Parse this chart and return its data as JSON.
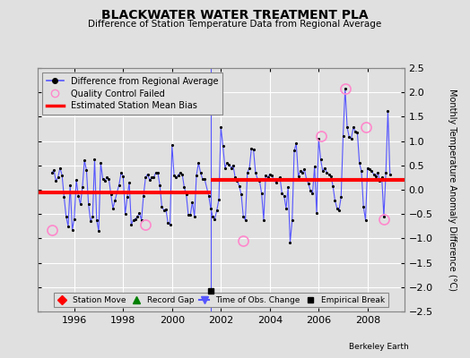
{
  "title": "BLACKWATER WATER TREATMENT PLA",
  "subtitle": "Difference of Station Temperature Data from Regional Average",
  "ylabel": "Monthly Temperature Anomaly Difference (°C)",
  "xlabel_ticks": [
    1996,
    1998,
    2000,
    2002,
    2004,
    2006,
    2008
  ],
  "yticks": [
    -2.5,
    -2,
    -1.5,
    -1,
    -0.5,
    0,
    0.5,
    1,
    1.5,
    2,
    2.5
  ],
  "xlim": [
    1994.5,
    2009.5
  ],
  "ylim": [
    -2.5,
    2.5
  ],
  "bg_color": "#e0e0e0",
  "plot_bg_color": "#e0e0e0",
  "grid_color": "#ffffff",
  "bias_line_1": {
    "x": [
      1994.5,
      2001.58
    ],
    "y": [
      -0.05,
      -0.05
    ]
  },
  "bias_line_2": {
    "x": [
      2001.58,
      2009.5
    ],
    "y": [
      0.2,
      0.2
    ]
  },
  "empirical_break_x": 2001.58,
  "empirical_break_marker_x": 2001.58,
  "empirical_break_marker_y": -2.08,
  "monthly_data": [
    [
      1995.083,
      0.35
    ],
    [
      1995.167,
      0.4
    ],
    [
      1995.25,
      0.18
    ],
    [
      1995.333,
      0.25
    ],
    [
      1995.417,
      0.45
    ],
    [
      1995.5,
      0.3
    ],
    [
      1995.583,
      -0.15
    ],
    [
      1995.667,
      -0.55
    ],
    [
      1995.75,
      -0.75
    ],
    [
      1995.833,
      0.1
    ],
    [
      1995.917,
      -0.82
    ],
    [
      1996.0,
      -0.6
    ],
    [
      1996.083,
      0.2
    ],
    [
      1996.167,
      -0.12
    ],
    [
      1996.25,
      -0.3
    ],
    [
      1996.333,
      0.05
    ],
    [
      1996.417,
      0.6
    ],
    [
      1996.5,
      0.4
    ],
    [
      1996.583,
      -0.3
    ],
    [
      1996.667,
      -0.65
    ],
    [
      1996.75,
      -0.55
    ],
    [
      1996.833,
      0.62
    ],
    [
      1996.917,
      -0.62
    ],
    [
      1997.0,
      -0.85
    ],
    [
      1997.083,
      0.55
    ],
    [
      1997.167,
      0.22
    ],
    [
      1997.25,
      0.18
    ],
    [
      1997.333,
      0.25
    ],
    [
      1997.417,
      0.22
    ],
    [
      1997.5,
      -0.1
    ],
    [
      1997.583,
      -0.38
    ],
    [
      1997.667,
      -0.22
    ],
    [
      1997.75,
      -0.05
    ],
    [
      1997.833,
      0.1
    ],
    [
      1997.917,
      0.35
    ],
    [
      1998.0,
      0.28
    ],
    [
      1998.083,
      -0.5
    ],
    [
      1998.167,
      -0.15
    ],
    [
      1998.25,
      0.15
    ],
    [
      1998.333,
      -0.72
    ],
    [
      1998.417,
      -0.62
    ],
    [
      1998.5,
      -0.6
    ],
    [
      1998.583,
      -0.55
    ],
    [
      1998.667,
      -0.48
    ],
    [
      1998.75,
      -0.62
    ],
    [
      1998.833,
      -0.12
    ],
    [
      1998.917,
      0.25
    ],
    [
      1999.0,
      0.32
    ],
    [
      1999.083,
      0.2
    ],
    [
      1999.167,
      0.25
    ],
    [
      1999.25,
      0.25
    ],
    [
      1999.333,
      0.35
    ],
    [
      1999.417,
      0.35
    ],
    [
      1999.5,
      0.1
    ],
    [
      1999.583,
      -0.35
    ],
    [
      1999.667,
      -0.42
    ],
    [
      1999.75,
      -0.4
    ],
    [
      1999.833,
      -0.68
    ],
    [
      1999.917,
      -0.72
    ],
    [
      2000.0,
      0.92
    ],
    [
      2000.083,
      0.3
    ],
    [
      2000.167,
      0.25
    ],
    [
      2000.25,
      0.3
    ],
    [
      2000.333,
      0.35
    ],
    [
      2000.417,
      0.32
    ],
    [
      2000.5,
      0.05
    ],
    [
      2000.583,
      -0.1
    ],
    [
      2000.667,
      -0.52
    ],
    [
      2000.75,
      -0.52
    ],
    [
      2000.833,
      -0.25
    ],
    [
      2000.917,
      -0.55
    ],
    [
      2001.0,
      0.3
    ],
    [
      2001.083,
      0.55
    ],
    [
      2001.167,
      0.35
    ],
    [
      2001.25,
      0.22
    ],
    [
      2001.333,
      0.22
    ],
    [
      2001.5,
      -0.12
    ],
    [
      2001.583,
      -0.38
    ],
    [
      2001.667,
      -0.55
    ],
    [
      2001.75,
      -0.6
    ],
    [
      2001.833,
      -0.42
    ],
    [
      2001.917,
      -0.2
    ],
    [
      2002.0,
      1.28
    ],
    [
      2002.083,
      0.9
    ],
    [
      2002.167,
      0.45
    ],
    [
      2002.25,
      0.55
    ],
    [
      2002.333,
      0.52
    ],
    [
      2002.417,
      0.45
    ],
    [
      2002.5,
      0.5
    ],
    [
      2002.583,
      0.25
    ],
    [
      2002.667,
      0.18
    ],
    [
      2002.75,
      0.08
    ],
    [
      2002.833,
      -0.1
    ],
    [
      2002.917,
      -0.55
    ],
    [
      2003.0,
      -0.62
    ],
    [
      2003.083,
      0.35
    ],
    [
      2003.167,
      0.45
    ],
    [
      2003.25,
      0.85
    ],
    [
      2003.333,
      0.82
    ],
    [
      2003.417,
      0.35
    ],
    [
      2003.5,
      0.22
    ],
    [
      2003.583,
      0.18
    ],
    [
      2003.667,
      -0.08
    ],
    [
      2003.75,
      -0.62
    ],
    [
      2003.833,
      0.3
    ],
    [
      2003.917,
      0.25
    ],
    [
      2004.0,
      0.32
    ],
    [
      2004.083,
      0.3
    ],
    [
      2004.167,
      0.2
    ],
    [
      2004.25,
      0.15
    ],
    [
      2004.333,
      0.22
    ],
    [
      2004.417,
      0.25
    ],
    [
      2004.5,
      -0.08
    ],
    [
      2004.583,
      -0.12
    ],
    [
      2004.667,
      -0.38
    ],
    [
      2004.75,
      0.05
    ],
    [
      2004.833,
      -1.08
    ],
    [
      2004.917,
      -0.62
    ],
    [
      2005.0,
      0.8
    ],
    [
      2005.083,
      0.95
    ],
    [
      2005.167,
      0.28
    ],
    [
      2005.25,
      0.38
    ],
    [
      2005.333,
      0.35
    ],
    [
      2005.417,
      0.42
    ],
    [
      2005.5,
      0.22
    ],
    [
      2005.583,
      0.12
    ],
    [
      2005.667,
      -0.02
    ],
    [
      2005.75,
      -0.08
    ],
    [
      2005.833,
      0.48
    ],
    [
      2005.917,
      -0.48
    ],
    [
      2006.0,
      1.05
    ],
    [
      2006.083,
      0.62
    ],
    [
      2006.167,
      0.38
    ],
    [
      2006.25,
      0.45
    ],
    [
      2006.333,
      0.35
    ],
    [
      2006.417,
      0.32
    ],
    [
      2006.5,
      0.28
    ],
    [
      2006.583,
      0.08
    ],
    [
      2006.667,
      -0.22
    ],
    [
      2006.75,
      -0.38
    ],
    [
      2006.833,
      -0.42
    ],
    [
      2006.917,
      -0.15
    ],
    [
      2007.0,
      1.1
    ],
    [
      2007.083,
      2.08
    ],
    [
      2007.167,
      1.28
    ],
    [
      2007.25,
      1.08
    ],
    [
      2007.333,
      1.05
    ],
    [
      2007.417,
      1.28
    ],
    [
      2007.5,
      1.2
    ],
    [
      2007.583,
      1.18
    ],
    [
      2007.667,
      0.55
    ],
    [
      2007.75,
      0.38
    ],
    [
      2007.833,
      -0.35
    ],
    [
      2007.917,
      -0.62
    ],
    [
      2008.0,
      0.45
    ],
    [
      2008.083,
      0.42
    ],
    [
      2008.167,
      0.38
    ],
    [
      2008.25,
      0.32
    ],
    [
      2008.333,
      0.28
    ],
    [
      2008.417,
      0.35
    ],
    [
      2008.5,
      0.18
    ],
    [
      2008.583,
      0.25
    ],
    [
      2008.667,
      -0.55
    ],
    [
      2008.75,
      0.35
    ],
    [
      2008.833,
      1.62
    ],
    [
      2008.917,
      0.32
    ]
  ],
  "qc_failed": [
    [
      1995.083,
      -0.82
    ],
    [
      1998.917,
      -0.72
    ],
    [
      2002.917,
      -1.05
    ],
    [
      2006.083,
      1.1
    ],
    [
      2007.083,
      2.08
    ],
    [
      2007.917,
      1.28
    ],
    [
      2008.667,
      -0.6
    ]
  ]
}
